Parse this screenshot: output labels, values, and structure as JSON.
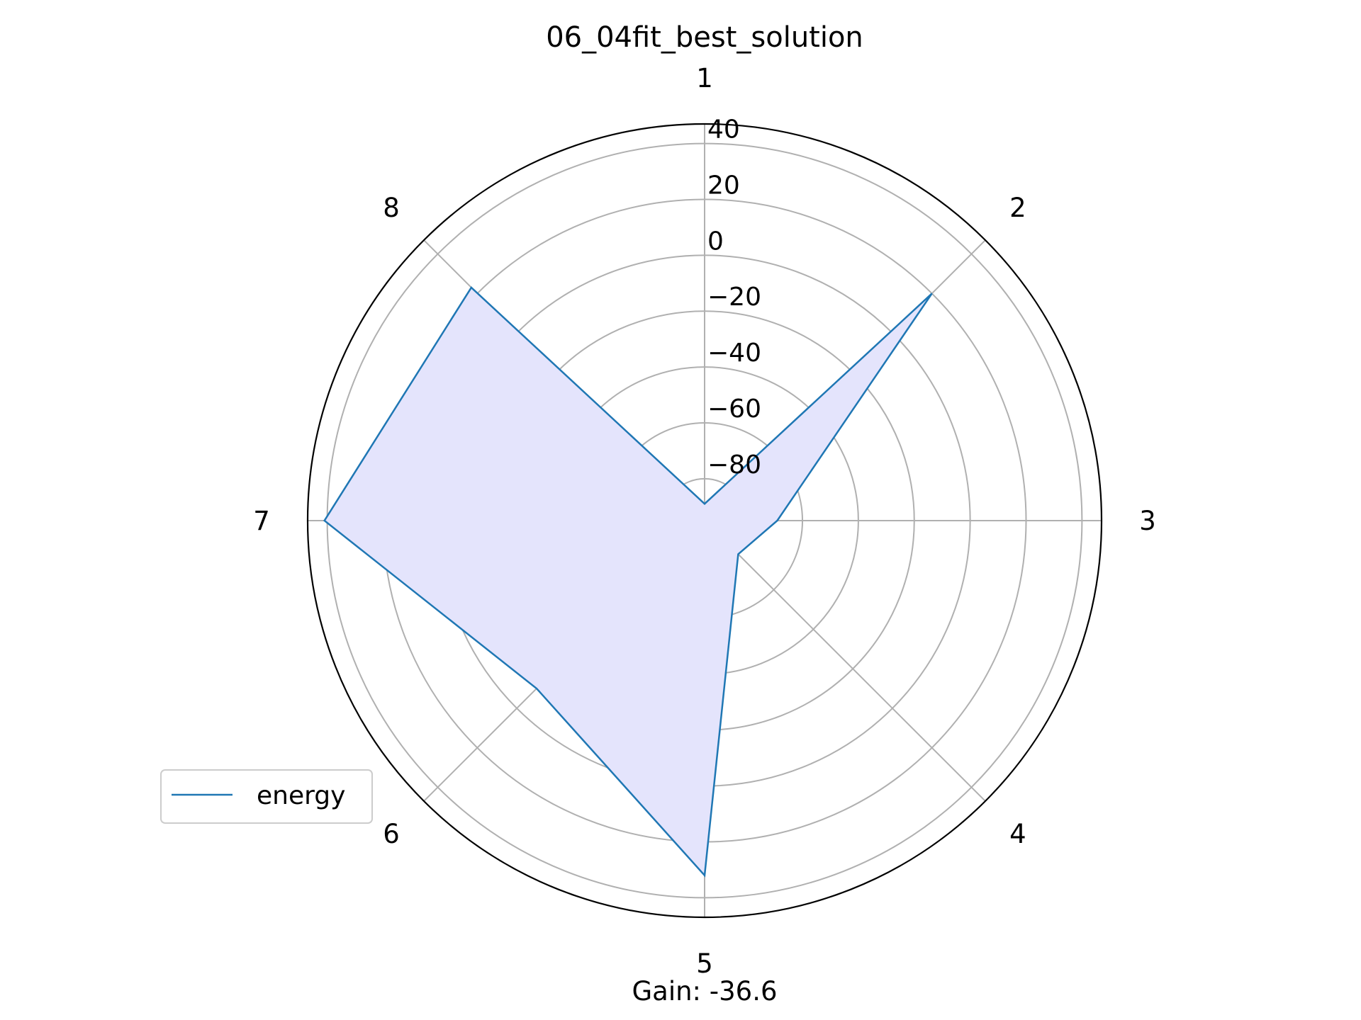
{
  "chart_data": {
    "type": "radar",
    "title": "06_04fit_best_solution",
    "categories": [
      "1",
      "2",
      "3",
      "4",
      "5",
      "6",
      "7",
      "8"
    ],
    "r_ticks": [
      -80,
      -60,
      -40,
      -20,
      0,
      20,
      40
    ],
    "r_tick_labels": [
      "−80",
      "−60",
      "−40",
      "−20",
      "0",
      "20",
      "40"
    ],
    "rlim": [
      -95,
      47
    ],
    "grid": true,
    "legend_position": "lower-left",
    "series": [
      {
        "name": "energy",
        "values": [
          -89,
          20,
          -69,
          -78,
          32,
          -10,
          41,
          23
        ],
        "color": "#1f77b4",
        "fill": "#e4e4fc"
      }
    ],
    "annotation": "Gain: -36.6"
  }
}
